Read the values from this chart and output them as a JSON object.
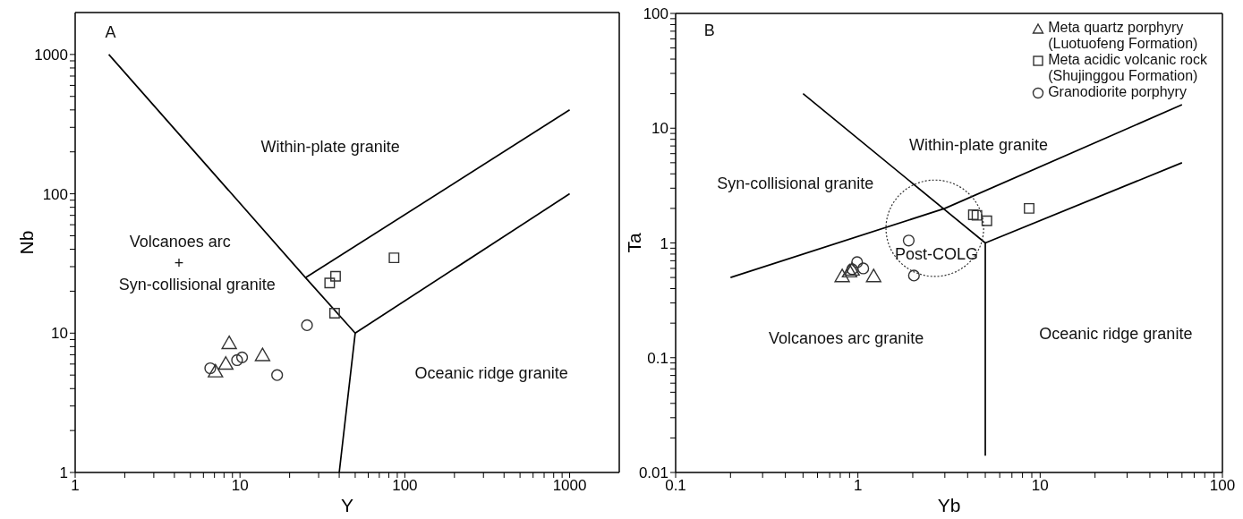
{
  "chart_data": [
    {
      "type": "scatter",
      "xlabel": "Y",
      "ylabel": "Nb",
      "log": "xy",
      "legend": false,
      "xlim": [
        1,
        2000
      ],
      "ylim": [
        1,
        2000
      ],
      "xticks": [
        1,
        {
          "value": 2,
          "label": null
        },
        {
          "value": 3,
          "label": null
        },
        {
          "value": 4,
          "label": null
        },
        {
          "value": 5,
          "label": null
        },
        {
          "value": 6,
          "label": null
        },
        {
          "value": 7,
          "label": null
        },
        {
          "value": 8,
          "label": null
        },
        {
          "value": 9,
          "label": null
        },
        10,
        {
          "value": 20,
          "label": null
        },
        {
          "value": 30,
          "label": null
        },
        {
          "value": 40,
          "label": null
        },
        {
          "value": 50,
          "label": null
        },
        {
          "value": 60,
          "label": null
        },
        {
          "value": 70,
          "label": null
        },
        {
          "value": 80,
          "label": null
        },
        {
          "value": 90,
          "label": null
        },
        100,
        {
          "value": 200,
          "label": null
        },
        {
          "value": 300,
          "label": null
        },
        {
          "value": 400,
          "label": null
        },
        {
          "value": 500,
          "label": null
        },
        {
          "value": 600,
          "label": null
        },
        {
          "value": 700,
          "label": null
        },
        {
          "value": 800,
          "label": null
        },
        {
          "value": 900,
          "label": null
        },
        1000
      ],
      "yticks": [
        1,
        {
          "value": 2,
          "label": null
        },
        {
          "value": 3,
          "label": null
        },
        {
          "value": 4,
          "label": null
        },
        {
          "value": 5,
          "label": null
        },
        {
          "value": 6,
          "label": null
        },
        {
          "value": 7,
          "label": null
        },
        {
          "value": 8,
          "label": null
        },
        {
          "value": 9,
          "label": null
        },
        10,
        {
          "value": 20,
          "label": null
        },
        {
          "value": 30,
          "label": null
        },
        {
          "value": 40,
          "label": null
        },
        {
          "value": 50,
          "label": null
        },
        {
          "value": 60,
          "label": null
        },
        {
          "value": 70,
          "label": null
        },
        {
          "value": 80,
          "label": null
        },
        {
          "value": 90,
          "label": null
        },
        100,
        {
          "value": 200,
          "label": null
        },
        {
          "value": 300,
          "label": null
        },
        {
          "value": 400,
          "label": null
        },
        {
          "value": 500,
          "label": null
        },
        {
          "value": 600,
          "label": null
        },
        {
          "value": 700,
          "label": null
        },
        {
          "value": 800,
          "label": null
        },
        {
          "value": 900,
          "label": null
        },
        1000
      ],
      "series": [
        {
          "marker": "triangle",
          "color": "#333333",
          "x": [
            8.6,
            8.2,
            7.1,
            13.7
          ],
          "values": [
            8.3,
            5.9,
            5.2,
            6.8
          ]
        },
        {
          "marker": "square",
          "color": "#333333",
          "x": [
            35,
            38,
            37.5,
            86
          ],
          "values": [
            22.9,
            25.6,
            13.9,
            34.7
          ]
        },
        {
          "marker": "circle",
          "color": "#333333",
          "x": [
            6.6,
            9.6,
            10.3,
            16.8,
            25.5
          ],
          "values": [
            5.6,
            6.4,
            6.7,
            5.0,
            11.4
          ]
        },
        {
          "type": "line",
          "color": "#000000",
          "x": [
            1.6,
            25,
            50,
            40
          ],
          "values": [
            1000,
            25,
            10,
            1
          ]
        },
        {
          "type": "line",
          "color": "#000000",
          "x": [
            25,
            1000
          ],
          "values": [
            25,
            400
          ]
        },
        {
          "type": "line",
          "color": "#000000",
          "x": [
            50,
            1000
          ],
          "values": [
            10,
            100
          ]
        }
      ],
      "annotations": [
        "A",
        "Within-plate granite",
        "Volcanoes arc",
        "+",
        "Syn-collisional granite",
        "Oceanic ridge granite"
      ]
    },
    {
      "type": "scatter",
      "xlabel": "Yb",
      "ylabel": "Ta",
      "log": "xy",
      "legend": "top right",
      "xlim": [
        0.1,
        100
      ],
      "ylim": [
        0.01,
        100
      ],
      "xticks": [
        0.1,
        {
          "value": 0.2,
          "label": null
        },
        {
          "value": 0.3,
          "label": null
        },
        {
          "value": 0.4,
          "label": null
        },
        {
          "value": 0.5,
          "label": null
        },
        {
          "value": 0.6,
          "label": null
        },
        {
          "value": 0.7,
          "label": null
        },
        {
          "value": 0.8,
          "label": null
        },
        {
          "value": 0.9,
          "label": null
        },
        1,
        {
          "value": 2,
          "label": null
        },
        {
          "value": 3,
          "label": null
        },
        {
          "value": 4,
          "label": null
        },
        {
          "value": 5,
          "label": null
        },
        {
          "value": 6,
          "label": null
        },
        {
          "value": 7,
          "label": null
        },
        {
          "value": 8,
          "label": null
        },
        {
          "value": 9,
          "label": null
        },
        10,
        {
          "value": 20,
          "label": null
        },
        {
          "value": 30,
          "label": null
        },
        {
          "value": 40,
          "label": null
        },
        {
          "value": 50,
          "label": null
        },
        {
          "value": 60,
          "label": null
        },
        {
          "value": 70,
          "label": null
        },
        {
          "value": 80,
          "label": null
        },
        {
          "value": 90,
          "label": null
        },
        100
      ],
      "yticks": [
        0.01,
        {
          "value": 0.02,
          "label": null
        },
        {
          "value": 0.03,
          "label": null
        },
        {
          "value": 0.04,
          "label": null
        },
        {
          "value": 0.05,
          "label": null
        },
        {
          "value": 0.06,
          "label": null
        },
        {
          "value": 0.07,
          "label": null
        },
        {
          "value": 0.08,
          "label": null
        },
        {
          "value": 0.09,
          "label": null
        },
        0.1,
        {
          "value": 0.2,
          "label": null
        },
        {
          "value": 0.3,
          "label": null
        },
        {
          "value": 0.4,
          "label": null
        },
        {
          "value": 0.5,
          "label": null
        },
        {
          "value": 0.6,
          "label": null
        },
        {
          "value": 0.7,
          "label": null
        },
        {
          "value": 0.8,
          "label": null
        },
        {
          "value": 0.9,
          "label": null
        },
        1,
        {
          "value": 2,
          "label": null
        },
        {
          "value": 3,
          "label": null
        },
        {
          "value": 4,
          "label": null
        },
        {
          "value": 5,
          "label": null
        },
        {
          "value": 6,
          "label": null
        },
        {
          "value": 7,
          "label": null
        },
        {
          "value": 8,
          "label": null
        },
        {
          "value": 9,
          "label": null
        },
        10,
        {
          "value": 20,
          "label": null
        },
        {
          "value": 30,
          "label": null
        },
        {
          "value": 40,
          "label": null
        },
        {
          "value": 50,
          "label": null
        },
        {
          "value": 60,
          "label": null
        },
        {
          "value": 70,
          "label": null
        },
        {
          "value": 80,
          "label": null
        },
        {
          "value": 90,
          "label": null
        },
        100
      ],
      "series": [
        {
          "name": "Meta quartz porphyry (Luotuofeng Formation)",
          "marker": "triangle",
          "color": "#333333",
          "x": [
            0.82,
            0.9,
            0.93,
            1.22
          ],
          "values": [
            0.5,
            0.55,
            0.57,
            0.5
          ]
        },
        {
          "name": "Meta acidic volcanic rock (Shujinggou Formation)",
          "marker": "square",
          "color": "#333333",
          "x": [
            4.3,
            4.5,
            5.1,
            8.7
          ],
          "values": [
            1.76,
            1.74,
            1.56,
            2.0
          ]
        },
        {
          "name": "Granodiorite porphyry",
          "marker": "circle",
          "color": "#333333",
          "x": [
            0.99,
            0.93,
            1.07,
            1.9,
            2.03
          ],
          "values": [
            0.68,
            0.59,
            0.6,
            1.05,
            0.52
          ]
        },
        {
          "type": "line",
          "color": "#000000",
          "x": [
            0.5,
            5,
            5
          ],
          "values": [
            20,
            1,
            0.014
          ]
        },
        {
          "type": "line",
          "color": "#000000",
          "x": [
            0.2,
            3,
            60
          ],
          "values": [
            0.5,
            2,
            16
          ]
        },
        {
          "type": "line",
          "color": "#000000",
          "x": [
            5,
            60
          ],
          "values": [
            1,
            5
          ]
        }
      ],
      "annotations": [
        "B",
        "Within-plate granite",
        "Syn-collisional granite",
        "Volcanoes arc granite",
        "Oceanic ridge granite",
        "Post-COLG"
      ]
    }
  ]
}
